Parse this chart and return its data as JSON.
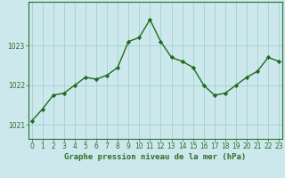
{
  "hours": [
    0,
    1,
    2,
    3,
    4,
    5,
    6,
    7,
    8,
    9,
    10,
    11,
    12,
    13,
    14,
    15,
    16,
    17,
    18,
    19,
    20,
    21,
    22,
    23
  ],
  "values": [
    1021.1,
    1021.4,
    1021.75,
    1021.8,
    1022.0,
    1022.2,
    1022.15,
    1022.25,
    1022.45,
    1023.1,
    1023.2,
    1023.65,
    1023.1,
    1022.7,
    1022.6,
    1022.45,
    1022.0,
    1021.75,
    1021.8,
    1022.0,
    1022.2,
    1022.35,
    1022.7,
    1022.6
  ],
  "line_color": "#1e6b1e",
  "marker": "D",
  "marker_size": 2.2,
  "line_width": 1.0,
  "bg_color": "#cce8ec",
  "grid_color": "#99cccc",
  "ylabel_ticks": [
    1021,
    1022,
    1023
  ],
  "ylim": [
    1020.65,
    1024.1
  ],
  "xlim": [
    -0.3,
    23.3
  ],
  "xlabel_label": "Graphe pression niveau de la mer (hPa)",
  "xlabel_fontsize": 6.5,
  "tick_fontsize": 5.5,
  "border_color": "#2d6e2d",
  "spine_color": "#2d6e2d"
}
